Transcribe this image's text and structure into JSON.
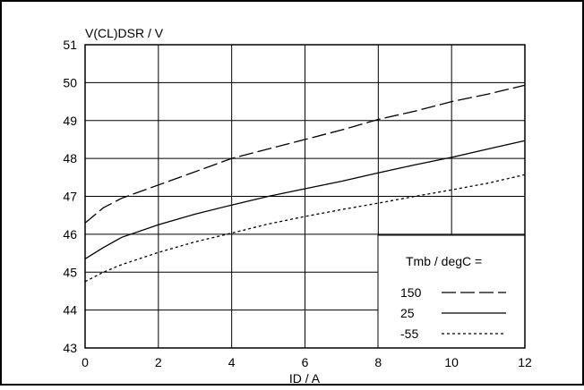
{
  "chart_data": {
    "type": "line",
    "ylabel": "V(CL)DSR / V",
    "xlabel": "ID / A",
    "xlim": [
      0,
      12
    ],
    "ylim": [
      43,
      51
    ],
    "x_ticks": [
      "0",
      "2",
      "4",
      "6",
      "8",
      "10",
      "12"
    ],
    "y_ticks": [
      "43",
      "44",
      "45",
      "46",
      "47",
      "48",
      "49",
      "50",
      "51"
    ],
    "grid": true,
    "legend": {
      "title": "Tmb / degC =",
      "placement": "bottom-right"
    },
    "series": [
      {
        "name": "150",
        "style": "long-dash",
        "x": [
          0,
          0.5,
          1,
          2,
          3,
          4,
          5,
          6,
          7,
          8,
          9,
          10,
          11,
          12
        ],
        "y": [
          46.3,
          46.7,
          46.95,
          47.3,
          47.65,
          48.0,
          48.25,
          48.5,
          48.75,
          49.03,
          49.25,
          49.5,
          49.7,
          49.93
        ]
      },
      {
        "name": "25",
        "style": "solid",
        "x": [
          0,
          0.5,
          1,
          2,
          3,
          4,
          5,
          6,
          7,
          8,
          9,
          10,
          11,
          12
        ],
        "y": [
          45.35,
          45.65,
          45.92,
          46.25,
          46.53,
          46.77,
          47.0,
          47.2,
          47.4,
          47.62,
          47.83,
          48.03,
          48.25,
          48.47
        ]
      },
      {
        "name": "-55",
        "style": "dotted",
        "x": [
          0,
          0.5,
          1,
          2,
          3,
          4,
          5,
          6,
          7,
          8,
          9,
          10,
          11,
          12
        ],
        "y": [
          44.75,
          45.0,
          45.2,
          45.52,
          45.8,
          46.03,
          46.27,
          46.47,
          46.65,
          46.82,
          47.0,
          47.17,
          47.35,
          47.57
        ]
      }
    ]
  }
}
